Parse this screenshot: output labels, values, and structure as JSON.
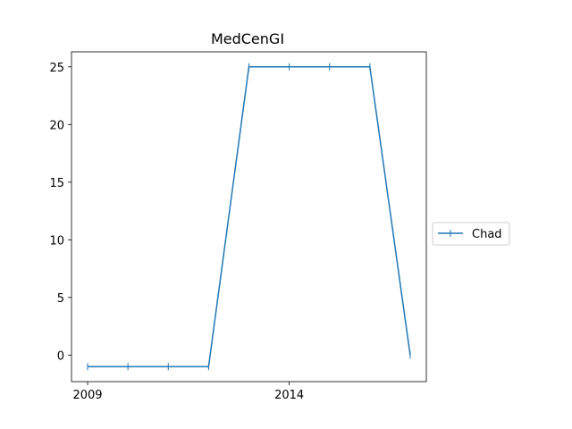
{
  "chart_data": {
    "type": "line",
    "title": "MedCenGI",
    "xlabel": "",
    "ylabel": "",
    "x": [
      2009,
      2010,
      2011,
      2012,
      2013,
      2014,
      2015,
      2016,
      2017
    ],
    "series": [
      {
        "name": "Chad",
        "values": [
          -1,
          -1,
          -1,
          -1,
          25,
          25,
          25,
          25,
          0
        ],
        "color": "#1f77b4",
        "marker": "|"
      }
    ],
    "xticks": [
      2009,
      2014
    ],
    "yticks": [
      0,
      5,
      10,
      15,
      20,
      25
    ],
    "xlim": [
      2008.6,
      2017.4
    ],
    "ylim": [
      -2.3,
      26.3
    ],
    "grid": false,
    "legend_position": "center-right outside"
  }
}
